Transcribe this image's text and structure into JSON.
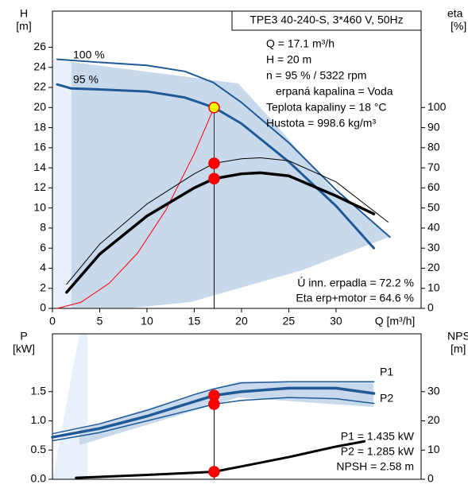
{
  "chart_data": [
    {
      "type": "line",
      "title": "TPE3 40-240-S, 3*460 V, 50Hz",
      "x_label": "Q [m³/h]",
      "y_label": "H",
      "y_unit": "[m]",
      "y2_label": "eta",
      "y2_unit": "[%]",
      "xlim": [
        0,
        39
      ],
      "xticks": [
        0,
        5,
        10,
        15,
        20,
        25,
        30
      ],
      "ylim": [
        0,
        29.6
      ],
      "yticks": [
        0,
        2,
        4,
        6,
        8,
        10,
        12,
        14,
        16,
        18,
        20,
        22,
        24,
        26
      ],
      "y2lim": [
        0,
        148
      ],
      "y2ticks": [
        0,
        10,
        20,
        30,
        40,
        50,
        60,
        70,
        80,
        90,
        100
      ],
      "annotations": [
        "Q = 17.1 m³/h",
        "H = 20 m",
        "n = 95 % / 5322 rpm",
        "erpaná kapalina = Voda",
        "Teplota kapaliny = 18 °C",
        "Hustota = 998.6 kg/m³",
        "Ú inn. erpadla = 72.2 %",
        "Eta   erp+motor = 64.6 %"
      ],
      "series": [
        {
          "name": "100 %",
          "color": "#1f5a96",
          "x": [
            0.5,
            5,
            10,
            14,
            17,
            20,
            25,
            30,
            35.7
          ],
          "values": [
            24.8,
            24.5,
            24.2,
            23.6,
            22.5,
            20.5,
            16.5,
            11.8,
            7.1
          ]
        },
        {
          "name": "95 %",
          "color": "#1f5a96",
          "x": [
            0.5,
            2,
            5,
            10,
            14,
            17.1,
            20,
            25,
            30,
            34
          ],
          "values": [
            22.3,
            21.9,
            21.8,
            21.6,
            21,
            20,
            18.4,
            14.6,
            10.2,
            6.0
          ]
        },
        {
          "color": "#ff0000",
          "x": [
            0.5,
            3,
            6,
            9,
            12,
            15,
            17.1
          ],
          "values": [
            0,
            0.6,
            2.5,
            5.5,
            9.8,
            15.4,
            20
          ]
        },
        {
          "color": "#000000",
          "axis": "y2",
          "x": [
            1.5,
            5,
            10,
            15,
            17.1,
            20,
            22,
            25,
            30,
            35.5
          ],
          "values": [
            12,
            32,
            52,
            67,
            72.2,
            74.5,
            75,
            73.5,
            63,
            43
          ]
        },
        {
          "color": "#000000",
          "axis": "y2",
          "x": [
            1.5,
            5,
            10,
            15,
            17.1,
            20,
            22,
            25,
            30,
            34
          ],
          "values": [
            8,
            27,
            46,
            60,
            64.6,
            67,
            67.5,
            66,
            56,
            47
          ]
        }
      ],
      "markers": [
        {
          "x": 17.1,
          "y": 20,
          "color": "#ffff00"
        },
        {
          "x": 17.1,
          "y": 72.2,
          "axis": "y2",
          "color": "#ff0000"
        },
        {
          "x": 17.1,
          "y": 64.6,
          "axis": "y2",
          "color": "#ff0000"
        }
      ]
    },
    {
      "type": "line",
      "y_label": "P",
      "y_unit": "[kW]",
      "y2_label": "NPSH",
      "y2_unit": "[m]",
      "xlim": [
        0,
        39
      ],
      "ylim": [
        0,
        2.49
      ],
      "yticks": [
        {
          "value": 0,
          "label": "0.0"
        },
        0.5,
        {
          "value": 1,
          "label": "1.0"
        },
        1.5
      ],
      "y2lim": [
        0,
        49.8
      ],
      "y2ticks": [
        0,
        10,
        20,
        30
      ],
      "annotations": [
        "P1 = 1.435 kW",
        "P2 = 1.285 kW",
        "NPSH = 2.58 m"
      ],
      "series": [
        {
          "name": "P1",
          "color": "#1f5a96",
          "x": [
            0,
            5,
            10,
            15,
            17.1,
            20,
            25,
            30,
            34
          ],
          "values": [
            0.78,
            0.95,
            1.18,
            1.45,
            1.55,
            1.65,
            1.67,
            1.67,
            1.67
          ]
        },
        {
          "color": "#1f5a96",
          "x": [
            0,
            5,
            10,
            15,
            17.1,
            20,
            25,
            30,
            34
          ],
          "values": [
            0.72,
            0.87,
            1.08,
            1.33,
            1.435,
            1.5,
            1.56,
            1.56,
            1.47
          ]
        },
        {
          "name": "P2",
          "color": "#1f5a96",
          "x": [
            0,
            5,
            10,
            15,
            17.1,
            20,
            25,
            30,
            34
          ],
          "values": [
            0.66,
            0.8,
            1.0,
            1.2,
            1.285,
            1.35,
            1.4,
            1.38,
            1.3
          ]
        },
        {
          "color": "#000000",
          "axis": "y2",
          "x": [
            2.5,
            10,
            17.1,
            20,
            25,
            30,
            33
          ],
          "values": [
            0.5,
            1.5,
            2.58,
            4.4,
            7.6,
            11.2,
            13
          ]
        }
      ],
      "markers": [
        {
          "x": 17.1,
          "y": 1.435,
          "color": "#ff0000"
        },
        {
          "x": 17.1,
          "y": 1.285,
          "color": "#ff0000"
        },
        {
          "x": 17.1,
          "y": 2.58,
          "axis": "y2",
          "color": "#ff0000"
        }
      ]
    }
  ]
}
